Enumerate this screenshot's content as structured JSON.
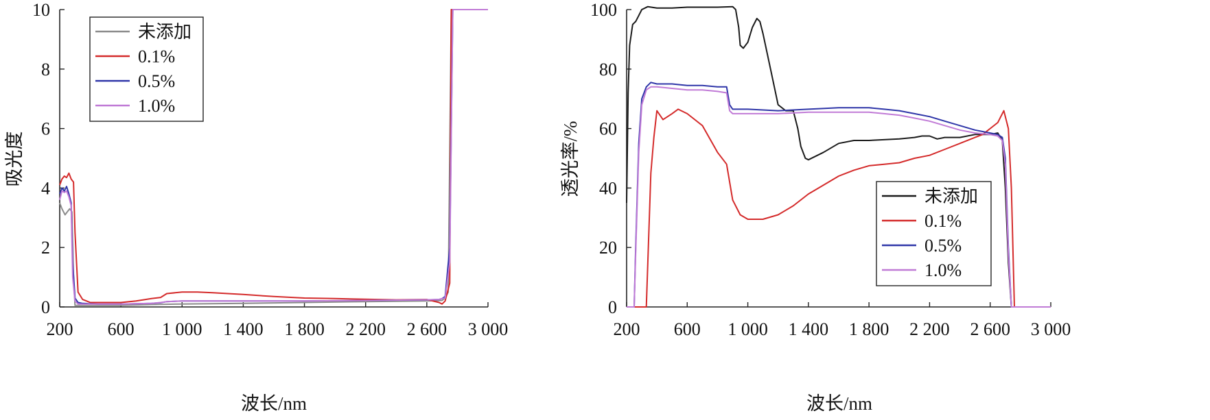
{
  "chart_data": [
    {
      "type": "line",
      "xlabel": "波长/nm",
      "ylabel": "吸光度",
      "xlim": [
        200,
        3000
      ],
      "ylim": [
        0,
        10
      ],
      "xticks": [
        "200",
        "600",
        "1 000",
        "1 400",
        "1 800",
        "2 200",
        "2 600",
        "3 000"
      ],
      "yticks": [
        "0",
        "2",
        "4",
        "6",
        "8",
        "10"
      ],
      "legend_position": "top-left",
      "series": [
        {
          "name": "未添加",
          "color": "#8c8c8c",
          "x": [
            200,
            215,
            235,
            250,
            265,
            280,
            290,
            300,
            315,
            350,
            450,
            600,
            800,
            1000,
            1400,
            1800,
            2200,
            2600,
            2700,
            2720,
            2740,
            2760,
            2800,
            3000
          ],
          "y": [
            3.5,
            3.3,
            3.1,
            3.2,
            3.3,
            3.2,
            1.0,
            0.05,
            0.05,
            0.05,
            0.05,
            0.05,
            0.08,
            0.1,
            0.12,
            0.15,
            0.18,
            0.2,
            0.22,
            0.3,
            0.5,
            10,
            10,
            10
          ]
        },
        {
          "name": "0.1%",
          "color": "#d42a2a",
          "x": [
            200,
            215,
            230,
            245,
            260,
            275,
            290,
            300,
            320,
            350,
            400,
            500,
            600,
            700,
            800,
            860,
            900,
            1000,
            1100,
            1200,
            1400,
            1600,
            1800,
            2000,
            2200,
            2400,
            2600,
            2680,
            2700,
            2720,
            2750,
            2760,
            2780,
            3000
          ],
          "y": [
            4.1,
            4.3,
            4.4,
            4.35,
            4.5,
            4.3,
            4.2,
            2.5,
            0.5,
            0.25,
            0.15,
            0.15,
            0.15,
            0.2,
            0.28,
            0.32,
            0.45,
            0.5,
            0.5,
            0.48,
            0.42,
            0.35,
            0.3,
            0.28,
            0.26,
            0.24,
            0.25,
            0.15,
            0.1,
            0.2,
            0.8,
            10,
            10,
            10
          ]
        },
        {
          "name": "0.5%",
          "color": "#2e35a8",
          "x": [
            200,
            215,
            230,
            245,
            260,
            275,
            285,
            300,
            320,
            350,
            450,
            600,
            800,
            860,
            900,
            1000,
            1400,
            1800,
            2200,
            2600,
            2680,
            2700,
            2720,
            2750,
            2770,
            3000
          ],
          "y": [
            3.8,
            4.0,
            3.9,
            4.05,
            3.8,
            3.5,
            1.5,
            0.3,
            0.15,
            0.12,
            0.1,
            0.1,
            0.12,
            0.14,
            0.18,
            0.2,
            0.2,
            0.2,
            0.22,
            0.24,
            0.25,
            0.28,
            0.35,
            2.0,
            10,
            10
          ]
        },
        {
          "name": "1.0%",
          "color": "#c07ad6",
          "x": [
            200,
            215,
            230,
            245,
            260,
            275,
            285,
            300,
            320,
            350,
            450,
            600,
            800,
            860,
            900,
            1000,
            1400,
            1800,
            2200,
            2600,
            2680,
            2700,
            2720,
            2750,
            2770,
            3000
          ],
          "y": [
            3.6,
            3.9,
            3.85,
            3.9,
            3.7,
            3.4,
            1.0,
            0.2,
            0.1,
            0.1,
            0.1,
            0.1,
            0.12,
            0.15,
            0.18,
            0.2,
            0.2,
            0.2,
            0.22,
            0.24,
            0.25,
            0.28,
            0.3,
            1.5,
            10,
            10
          ]
        }
      ]
    },
    {
      "type": "line",
      "xlabel": "波长/nm",
      "ylabel": "透光率/%",
      "xlim": [
        200,
        3000
      ],
      "ylim": [
        0,
        100
      ],
      "xticks": [
        "200",
        "600",
        "1 000",
        "1 400",
        "1 800",
        "2 200",
        "2 600",
        "3 000"
      ],
      "yticks": [
        "0",
        "20",
        "40",
        "60",
        "80",
        "100"
      ],
      "legend_position": "bottom-right",
      "series": [
        {
          "name": "未添加",
          "color": "#1a1a1a",
          "x": [
            200,
            210,
            220,
            240,
            260,
            280,
            300,
            340,
            400,
            500,
            600,
            800,
            900,
            920,
            940,
            950,
            970,
            1000,
            1030,
            1060,
            1080,
            1100,
            1150,
            1200,
            1250,
            1300,
            1330,
            1350,
            1380,
            1400,
            1500,
            1600,
            1700,
            1800,
            2000,
            2100,
            2150,
            2200,
            2250,
            2300,
            2400,
            2500,
            2600,
            2650,
            2680,
            2700,
            2720,
            2740,
            2760,
            2800,
            3000
          ],
          "y": [
            35,
            72,
            88,
            95,
            96,
            98,
            100,
            101,
            100.5,
            100.5,
            100.8,
            100.8,
            101,
            100,
            94,
            88,
            87,
            89,
            94,
            97,
            96,
            92,
            80,
            68,
            66,
            66,
            60,
            54,
            50,
            49.5,
            52,
            55,
            56,
            56,
            56.5,
            57,
            57.5,
            57.5,
            56.5,
            57,
            57,
            58,
            58,
            58.5,
            56,
            40,
            15,
            0,
            0,
            0,
            0
          ]
        },
        {
          "name": "0.1%",
          "color": "#d42a2a",
          "x": [
            200,
            300,
            330,
            340,
            360,
            380,
            400,
            440,
            500,
            540,
            600,
            700,
            800,
            860,
            880,
            900,
            950,
            1000,
            1100,
            1200,
            1300,
            1400,
            1500,
            1600,
            1700,
            1800,
            1900,
            2000,
            2100,
            2200,
            2300,
            2400,
            2500,
            2550,
            2600,
            2650,
            2670,
            2690,
            2700,
            2720,
            2740,
            2760,
            2800,
            3000
          ],
          "y": [
            0,
            0,
            0,
            15,
            45,
            57,
            66,
            63,
            65,
            66.5,
            65,
            61,
            52,
            48,
            42,
            36,
            31,
            29.5,
            29.5,
            31,
            34,
            38,
            41,
            44,
            46,
            47.5,
            48,
            48.5,
            50,
            51,
            53,
            55,
            57,
            58,
            60,
            62,
            64,
            66,
            64,
            60,
            40,
            0,
            0,
            0
          ]
        },
        {
          "name": "0.5%",
          "color": "#2e35a8",
          "x": [
            200,
            250,
            260,
            280,
            300,
            330,
            360,
            400,
            500,
            600,
            700,
            800,
            860,
            870,
            880,
            900,
            1000,
            1200,
            1400,
            1600,
            1800,
            1900,
            2000,
            2100,
            2200,
            2300,
            2400,
            2500,
            2600,
            2650,
            2680,
            2700,
            2720,
            2740,
            2760,
            3000
          ],
          "y": [
            0,
            0,
            20,
            55,
            70,
            74,
            75.5,
            75,
            75,
            74.5,
            74.5,
            74,
            74,
            71,
            68,
            66.5,
            66.5,
            66,
            66.5,
            67,
            67,
            66.5,
            66,
            65,
            64,
            62.5,
            61,
            59.5,
            58.5,
            58,
            57,
            50,
            20,
            0,
            0,
            0
          ]
        },
        {
          "name": "1.0%",
          "color": "#c07ad6",
          "x": [
            200,
            250,
            260,
            280,
            300,
            330,
            360,
            400,
            500,
            600,
            700,
            800,
            860,
            870,
            880,
            900,
            1000,
            1200,
            1400,
            1600,
            1800,
            1900,
            2000,
            2100,
            2200,
            2300,
            2400,
            2500,
            2600,
            2650,
            2680,
            2700,
            2720,
            2740,
            2760,
            3000
          ],
          "y": [
            0,
            0,
            18,
            52,
            68,
            73,
            74,
            74,
            73.5,
            73,
            73,
            72.5,
            72,
            69,
            66,
            65,
            65,
            65,
            65.5,
            65.5,
            65.5,
            65,
            64.5,
            63.5,
            62.5,
            61,
            59.5,
            58.5,
            58,
            57.5,
            56,
            48,
            18,
            0,
            0,
            0
          ]
        }
      ]
    }
  ]
}
